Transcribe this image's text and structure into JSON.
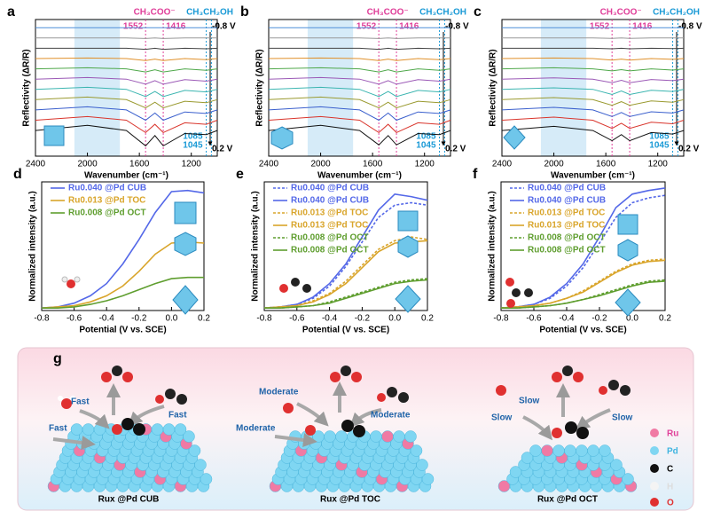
{
  "chart_data": [
    {
      "type": "line",
      "panel_label": "a",
      "xlabel": "Wavenumber (cm⁻¹)",
      "ylabel": "Reflectivity (ΔR/R)",
      "xlim": [
        2400,
        1000
      ],
      "xticks": [
        2400,
        2000,
        1600,
        1200
      ],
      "ylim": [
        -2.5,
        10.8
      ],
      "shade": [
        2100,
        1750
      ],
      "shade_color": "#d6ebf8",
      "acetate_label": "CH₃COO⁻",
      "acetate_color": "#e0409a",
      "acetate_lines": [
        1552,
        1416
      ],
      "ethanol_label": "CH₃CH₂OH",
      "ethanol_color": "#1a9ad6",
      "ethanol_lines": [
        1085,
        1045
      ],
      "potential_start": "-0.8 V",
      "potential_end": "0.2 V",
      "x": [
        2400,
        2000,
        1700,
        1552,
        1480,
        1416,
        1250,
        1085,
        1000
      ],
      "series": [
        {
          "color": "#4f8fd8",
          "values": [
            10,
            10,
            10,
            10,
            10,
            10,
            10,
            10,
            10
          ]
        },
        {
          "color": "#999999",
          "values": [
            9,
            9,
            9,
            8.95,
            9,
            8.95,
            9,
            9,
            9
          ]
        },
        {
          "color": "#444444",
          "values": [
            8,
            8,
            8,
            7.9,
            8,
            7.9,
            8,
            7.95,
            8
          ]
        },
        {
          "color": "#e0902a",
          "values": [
            7,
            7.05,
            7,
            6.8,
            6.95,
            6.8,
            7,
            6.9,
            7
          ]
        },
        {
          "color": "#4fa84a",
          "values": [
            6,
            6.1,
            6,
            5.7,
            5.9,
            5.7,
            6,
            5.85,
            6
          ]
        },
        {
          "color": "#9b59b6",
          "values": [
            5,
            5.15,
            5,
            4.5,
            4.85,
            4.5,
            4.95,
            4.8,
            5
          ]
        },
        {
          "color": "#3bb5b0",
          "values": [
            4,
            4.2,
            4,
            3.3,
            3.8,
            3.3,
            3.9,
            3.75,
            4
          ]
        },
        {
          "color": "#9a9a30",
          "values": [
            3,
            3.25,
            3,
            2.2,
            2.75,
            2.2,
            2.85,
            2.7,
            3
          ]
        },
        {
          "color": "#3a5fcd",
          "values": [
            2,
            2.3,
            2,
            1,
            1.7,
            1,
            1.8,
            1.65,
            2
          ]
        },
        {
          "color": "#d9342b",
          "values": [
            1,
            1.35,
            1,
            -0.2,
            0.6,
            -0.2,
            0.75,
            0.6,
            1
          ]
        },
        {
          "color": "#111111",
          "values": [
            0,
            0.5,
            0,
            -1.5,
            -0.5,
            -1.5,
            -0.3,
            -0.4,
            0
          ]
        }
      ]
    },
    {
      "type": "line",
      "panel_label": "b",
      "xlabel": "Wavenumber (cm⁻¹)",
      "ylabel": "Reflectivity (ΔR/R)",
      "xlim": [
        2400,
        1000
      ],
      "xticks": [
        2400,
        2000,
        1600,
        1200
      ],
      "ylim": [
        -2.5,
        10.8
      ],
      "shade": [
        2100,
        1750
      ],
      "shade_color": "#d6ebf8",
      "acetate_label": "CH₃COO⁻",
      "acetate_color": "#e0409a",
      "acetate_lines": [
        1552,
        1416
      ],
      "ethanol_label": "CH₃CH₂OH",
      "ethanol_color": "#1a9ad6",
      "ethanol_lines": [
        1085,
        1045
      ],
      "potential_start": "-0.8 V",
      "potential_end": "0.2 V",
      "x": [
        2400,
        2000,
        1700,
        1552,
        1480,
        1416,
        1250,
        1085,
        1000
      ],
      "series": [
        {
          "color": "#4f8fd8",
          "values": [
            10,
            10,
            10,
            10,
            10,
            10,
            10,
            10,
            10
          ]
        },
        {
          "color": "#999999",
          "values": [
            9,
            9,
            9,
            8.95,
            9,
            8.95,
            9,
            9,
            9
          ]
        },
        {
          "color": "#444444",
          "values": [
            8,
            8,
            8,
            7.9,
            8,
            7.9,
            8,
            7.95,
            8
          ]
        },
        {
          "color": "#e0902a",
          "values": [
            7,
            7.05,
            7,
            6.8,
            6.95,
            6.8,
            7,
            6.9,
            7
          ]
        },
        {
          "color": "#4fa84a",
          "values": [
            6,
            6.1,
            6,
            5.7,
            5.9,
            5.7,
            6,
            5.85,
            6
          ]
        },
        {
          "color": "#9b59b6",
          "values": [
            5,
            5.15,
            5,
            4.5,
            4.85,
            4.5,
            4.95,
            4.8,
            5
          ]
        },
        {
          "color": "#3bb5b0",
          "values": [
            4,
            4.2,
            4,
            3.3,
            3.8,
            3.3,
            3.9,
            3.75,
            4
          ]
        },
        {
          "color": "#9a9a30",
          "values": [
            3,
            3.25,
            3,
            2.2,
            2.75,
            2.2,
            2.85,
            2.7,
            3
          ]
        },
        {
          "color": "#3a5fcd",
          "values": [
            2,
            2.3,
            2,
            1,
            1.7,
            1,
            1.8,
            1.65,
            2
          ]
        },
        {
          "color": "#d9342b",
          "values": [
            1,
            1.35,
            1,
            -0.2,
            0.6,
            -0.2,
            0.75,
            0.6,
            1
          ]
        },
        {
          "color": "#111111",
          "values": [
            0,
            0.5,
            0,
            -1.4,
            -0.5,
            -1.4,
            -0.3,
            -0.4,
            0
          ]
        }
      ]
    },
    {
      "type": "line",
      "panel_label": "c",
      "xlabel": "Wavenumber (cm⁻¹)",
      "ylabel": "Reflectivity (ΔR/R)",
      "xlim": [
        2400,
        1000
      ],
      "xticks": [
        2400,
        2000,
        1600,
        1200
      ],
      "ylim": [
        -2.5,
        10.8
      ],
      "shade": [
        2100,
        1750
      ],
      "shade_color": "#d6ebf8",
      "acetate_label": "CH₃COO⁻",
      "acetate_color": "#e0409a",
      "acetate_lines": [
        1552,
        1416
      ],
      "ethanol_label": "CH₃CH₂OH",
      "ethanol_color": "#1a9ad6",
      "ethanol_lines": [
        1085,
        1045
      ],
      "potential_start": "-0.8 V",
      "potential_end": "0.2 V",
      "x": [
        2400,
        2000,
        1700,
        1552,
        1480,
        1416,
        1250,
        1085,
        1000
      ],
      "series": [
        {
          "color": "#4f8fd8",
          "values": [
            10,
            10,
            10,
            10,
            10,
            10,
            10,
            10,
            10
          ]
        },
        {
          "color": "#999999",
          "values": [
            9,
            9,
            9,
            8.97,
            9,
            8.97,
            9,
            9,
            9
          ]
        },
        {
          "color": "#444444",
          "values": [
            8,
            8,
            8,
            7.95,
            8,
            7.95,
            8,
            7.97,
            8
          ]
        },
        {
          "color": "#e0902a",
          "values": [
            7,
            7.05,
            7,
            6.85,
            6.95,
            6.85,
            7,
            6.92,
            7
          ]
        },
        {
          "color": "#4fa84a",
          "values": [
            6,
            6.1,
            6,
            5.8,
            5.92,
            5.8,
            6,
            5.88,
            6
          ]
        },
        {
          "color": "#9b59b6",
          "values": [
            5,
            5.12,
            5,
            4.65,
            4.88,
            4.65,
            4.96,
            4.85,
            5
          ]
        },
        {
          "color": "#3bb5b0",
          "values": [
            4,
            4.15,
            4,
            3.5,
            3.85,
            3.5,
            3.92,
            3.8,
            4
          ]
        },
        {
          "color": "#9a9a30",
          "values": [
            3,
            3.2,
            3,
            2.45,
            2.8,
            2.45,
            2.88,
            2.75,
            3
          ]
        },
        {
          "color": "#3a5fcd",
          "values": [
            2,
            2.25,
            2,
            1.35,
            1.75,
            1.35,
            1.82,
            1.7,
            2
          ]
        },
        {
          "color": "#d9342b",
          "values": [
            1,
            1.3,
            1,
            0.2,
            0.7,
            0.2,
            0.8,
            0.65,
            1
          ]
        },
        {
          "color": "#111111",
          "values": [
            0,
            0.4,
            0,
            -1,
            -0.4,
            -1,
            -0.2,
            -0.35,
            0
          ]
        }
      ]
    },
    {
      "type": "line",
      "panel_label": "d",
      "xlabel": "Potential (V vs. SCE)",
      "ylabel": "Normalized intensity (a.u.)",
      "xlim": [
        -0.8,
        0.2
      ],
      "xticks": [
        -0.8,
        -0.6,
        -0.4,
        -0.2,
        {
          "value": 0,
          "label": "0.0"
        },
        0.2
      ],
      "ylim": [
        0,
        1.05
      ],
      "x": [
        -0.8,
        -0.7,
        -0.6,
        -0.5,
        -0.4,
        -0.3,
        -0.2,
        -0.1,
        0,
        0.1,
        0.2
      ],
      "series": [
        {
          "name": "Ru0.040 @Pd CUB",
          "color": "#5468e8",
          "values": [
            0.02,
            0.03,
            0.06,
            0.12,
            0.22,
            0.38,
            0.58,
            0.8,
            0.97,
            0.98,
            0.96
          ]
        },
        {
          "name": "Ru0.013 @Pd TOC",
          "color": "#d9a52b",
          "values": [
            0.02,
            0.03,
            0.04,
            0.07,
            0.12,
            0.2,
            0.32,
            0.46,
            0.55,
            0.56,
            0.55
          ]
        },
        {
          "name": "Ru0.008 @Pd OCT",
          "color": "#5f9e2f",
          "values": [
            0.02,
            0.02,
            0.03,
            0.05,
            0.08,
            0.12,
            0.17,
            0.22,
            0.26,
            0.27,
            0.27
          ]
        }
      ]
    },
    {
      "type": "line",
      "panel_label": "e",
      "xlabel": "Potential (V vs. SCE)",
      "ylabel": "Normalized intensity (a.u.)",
      "xlim": [
        -0.8,
        0.2
      ],
      "xticks": [
        -0.8,
        -0.6,
        -0.4,
        -0.2,
        {
          "value": 0,
          "label": "0.0"
        },
        0.2
      ],
      "ylim": [
        0,
        1.05
      ],
      "x": [
        -0.8,
        -0.7,
        -0.6,
        -0.5,
        -0.4,
        -0.3,
        -0.2,
        -0.1,
        0,
        0.1,
        0.2
      ],
      "series": [
        {
          "name": "Ru0.040 @Pd CUB",
          "color": "#5468e8",
          "dashed": true,
          "values": [
            0.02,
            0.03,
            0.05,
            0.1,
            0.2,
            0.36,
            0.56,
            0.76,
            0.86,
            0.88,
            0.86
          ]
        },
        {
          "name": "Ru0.040 @Pd CUB",
          "color": "#5468e8",
          "dashed": false,
          "values": [
            0.02,
            0.03,
            0.05,
            0.11,
            0.22,
            0.38,
            0.6,
            0.82,
            0.95,
            0.93,
            0.9
          ]
        },
        {
          "name": "Ru0.013 @Pd TOC",
          "color": "#d9a52b",
          "dashed": true,
          "values": [
            0.02,
            0.03,
            0.04,
            0.08,
            0.14,
            0.24,
            0.37,
            0.5,
            0.57,
            0.6,
            0.58
          ]
        },
        {
          "name": "Ru0.013 @Pd TOC",
          "color": "#d9a52b",
          "dashed": false,
          "values": [
            0.02,
            0.03,
            0.04,
            0.07,
            0.13,
            0.22,
            0.35,
            0.48,
            0.55,
            0.56,
            0.57
          ]
        },
        {
          "name": "Ru0.008 @Pd OCT",
          "color": "#5f9e2f",
          "dashed": true,
          "values": [
            0.02,
            0.02,
            0.03,
            0.04,
            0.07,
            0.11,
            0.15,
            0.19,
            0.23,
            0.25,
            0.26
          ]
        },
        {
          "name": "Ru0.008 @Pd OCT",
          "color": "#5f9e2f",
          "dashed": false,
          "values": [
            0.02,
            0.02,
            0.03,
            0.04,
            0.06,
            0.1,
            0.14,
            0.18,
            0.22,
            0.24,
            0.25
          ]
        }
      ]
    },
    {
      "type": "line",
      "panel_label": "f",
      "xlabel": "Potential (V vs. SCE)",
      "ylabel": "Normalized intensity (a.u.)",
      "xlim": [
        -0.8,
        0.2
      ],
      "xticks": [
        -0.8,
        -0.6,
        -0.4,
        -0.2,
        {
          "value": 0,
          "label": "0.0"
        },
        0.2
      ],
      "ylim": [
        0,
        1.05
      ],
      "x": [
        -0.8,
        -0.7,
        -0.6,
        -0.5,
        -0.4,
        -0.3,
        -0.2,
        -0.1,
        0,
        0.1,
        0.2
      ],
      "series": [
        {
          "name": "Ru0.040 @Pd CUB",
          "color": "#5468e8",
          "dashed": true,
          "values": [
            0.02,
            0.03,
            0.05,
            0.1,
            0.2,
            0.35,
            0.55,
            0.76,
            0.88,
            0.92,
            0.94
          ]
        },
        {
          "name": "Ru0.040 @Pd CUB",
          "color": "#5468e8",
          "dashed": false,
          "values": [
            0.02,
            0.03,
            0.05,
            0.11,
            0.22,
            0.38,
            0.6,
            0.84,
            0.95,
            0.98,
            1.0
          ]
        },
        {
          "name": "Ru0.013 @Pd TOC",
          "color": "#d9a52b",
          "dashed": true,
          "values": [
            0.02,
            0.03,
            0.04,
            0.06,
            0.1,
            0.16,
            0.24,
            0.32,
            0.38,
            0.41,
            0.42
          ]
        },
        {
          "name": "Ru0.013 @Pd TOC",
          "color": "#d9a52b",
          "dashed": false,
          "values": [
            0.02,
            0.03,
            0.04,
            0.06,
            0.1,
            0.15,
            0.23,
            0.31,
            0.37,
            0.4,
            0.41
          ]
        },
        {
          "name": "Ru0.008 @Pd OCT",
          "color": "#5f9e2f",
          "dashed": true,
          "values": [
            0.02,
            0.02,
            0.03,
            0.04,
            0.06,
            0.09,
            0.13,
            0.17,
            0.21,
            0.24,
            0.25
          ]
        },
        {
          "name": "Ru0.008 @Pd OCT",
          "color": "#5f9e2f",
          "dashed": false,
          "values": [
            0.02,
            0.02,
            0.03,
            0.04,
            0.06,
            0.09,
            0.12,
            0.16,
            0.2,
            0.23,
            0.24
          ]
        }
      ]
    }
  ],
  "diagram": {
    "panel_label": "g",
    "catalysts": [
      {
        "label": "Rux @Pd CUB",
        "rates": [
          "Fast",
          "Fast",
          "Fast"
        ]
      },
      {
        "label": "Rux @Pd TOC",
        "rates": [
          "Moderate",
          "Moderate",
          "Moderate"
        ]
      },
      {
        "label": "Rux @Pd OCT",
        "rates": [
          "Slow",
          "Slow",
          "Slow"
        ]
      }
    ],
    "legend": [
      "Ru",
      "Pd",
      "C",
      "H",
      "O"
    ]
  }
}
